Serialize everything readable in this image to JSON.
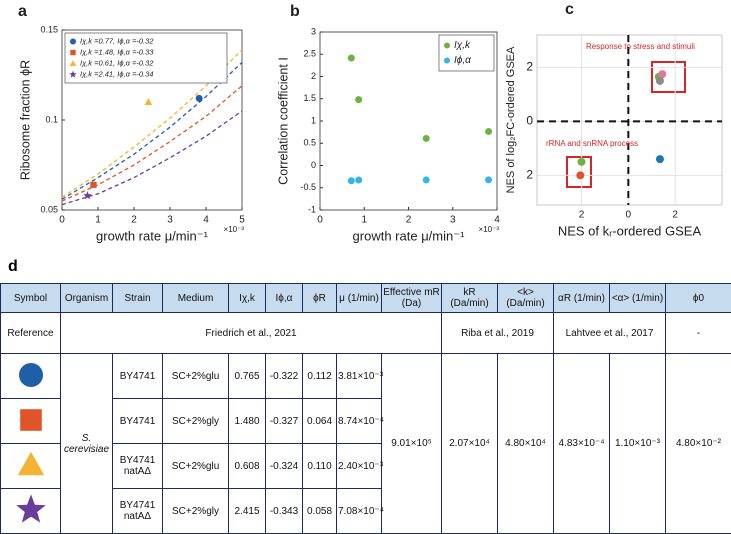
{
  "chart_data": [
    {
      "type": "scatter",
      "label": "a",
      "xlabel": "growth rate μ/min⁻¹",
      "x_multiplier": "×10⁻³",
      "ylabel": "Ribosome fraction ϕR",
      "xlim": [
        0,
        5
      ],
      "ylim": [
        0.05,
        0.15
      ],
      "xticks": [
        0,
        1,
        2,
        3,
        4,
        5
      ],
      "yticks": [
        0.05,
        0.1,
        0.15
      ],
      "legend": "upper left",
      "series": [
        {
          "name": "Iχ,k =0.77, Iϕ,α =-0.32",
          "color": "#1f5fa8",
          "marker": "circle",
          "x": [
            3.81
          ],
          "values": [
            0.112
          ],
          "fit_x": [
            0,
            1,
            2,
            3,
            4,
            5
          ],
          "fit_values": [
            0.056,
            0.068,
            0.081,
            0.096,
            0.113,
            0.132
          ]
        },
        {
          "name": "Iχ,k =1.48, Iϕ,α =-0.33",
          "color": "#e0542a",
          "marker": "square",
          "x": [
            0.874
          ],
          "values": [
            0.064
          ],
          "fit_x": [
            0,
            1,
            2,
            3,
            4,
            5
          ],
          "fit_values": [
            0.055,
            0.064,
            0.075,
            0.088,
            0.102,
            0.119
          ]
        },
        {
          "name": "Iχ,k =0.61, Iϕ,α =-0.32",
          "color": "#f3b531",
          "marker": "triangle",
          "x": [
            2.4
          ],
          "values": [
            0.11
          ],
          "fit_x": [
            0,
            1,
            2,
            3,
            4,
            5
          ],
          "fit_values": [
            0.057,
            0.07,
            0.085,
            0.101,
            0.119,
            0.139
          ]
        },
        {
          "name": "Iχ,k =2.41, Iϕ,α =-0.34",
          "color": "#6a3d9a",
          "marker": "star",
          "x": [
            0.708
          ],
          "values": [
            0.058
          ],
          "fit_x": [
            0,
            1,
            2,
            3,
            4,
            5
          ],
          "fit_values": [
            0.053,
            0.059,
            0.068,
            0.079,
            0.091,
            0.105
          ]
        }
      ]
    },
    {
      "type": "scatter",
      "label": "b",
      "xlabel": "growth rate μ/min⁻¹",
      "x_multiplier": "×10⁻³",
      "ylabel": "Correlation coefficient I",
      "xlim": [
        0,
        4
      ],
      "ylim": [
        -1,
        3
      ],
      "xticks": [
        0,
        1,
        2,
        3,
        4
      ],
      "yticks": [
        -1,
        -0.5,
        0,
        0.5,
        1,
        1.5,
        2,
        2.5,
        3
      ],
      "legend": "upper right",
      "series": [
        {
          "name": "Iχ,k",
          "color": "#6db33f",
          "marker": "circle",
          "x": [
            0.708,
            0.874,
            2.4,
            3.81
          ],
          "values": [
            2.415,
            1.48,
            0.608,
            0.765
          ]
        },
        {
          "name": "Iϕ,α",
          "color": "#34b6e4",
          "marker": "circle",
          "x": [
            0.708,
            0.874,
            2.4,
            3.81
          ],
          "values": [
            -0.343,
            -0.327,
            -0.324,
            -0.322
          ]
        }
      ]
    },
    {
      "type": "scatter",
      "label": "c",
      "xlabel": "NES of kᵣ-ordered GSEA",
      "ylabel": "NES of log₂FC-ordered GSEA",
      "xlim": [
        -3.9,
        4
      ],
      "ylim": [
        -3.1,
        3.2
      ],
      "xticks": [
        {
          "value": -2,
          "label": "2"
        },
        0,
        2
      ],
      "yticks": [
        {
          "value": -2,
          "label": "2"
        },
        0,
        2
      ],
      "grid": true,
      "zero_lines": true,
      "annotation_color": "#d62728",
      "annotations": [
        "Response to stress and stimuli",
        "rRNA and snRNA process"
      ],
      "series": [
        {
          "color": "#6db33f",
          "marker": "circle",
          "x": [
            1.3
          ],
          "values": [
            1.65
          ]
        },
        {
          "color": "#e377a0",
          "marker": "circle",
          "x": [
            1.45
          ],
          "values": [
            1.75
          ]
        },
        {
          "color": "#8c8c8c",
          "marker": "circle",
          "x": [
            1.35
          ],
          "values": [
            1.5
          ]
        },
        {
          "color": "#6db33f",
          "marker": "circle",
          "x": [
            -2.0
          ],
          "values": [
            -1.5
          ]
        },
        {
          "color": "#e0542a",
          "marker": "circle",
          "x": [
            -2.05
          ],
          "values": [
            -2.0
          ]
        },
        {
          "color": "#1f77b4",
          "marker": "circle",
          "x": [
            1.35
          ],
          "values": [
            -1.4
          ]
        }
      ]
    }
  ],
  "table": {
    "label": "d",
    "header": [
      "Symbol",
      "Organism",
      "Strain",
      "Medium",
      "Iχ,k",
      "Iϕ,α",
      "ϕR",
      "μ (1/min)",
      "Effective mR (Da)",
      "kR (Da/min)",
      "<k> (Da/min)",
      "αR (1/min)",
      "<α> (1/min)",
      "ϕ0"
    ],
    "reference": [
      "Reference",
      "Friedrich et al., 2021",
      "Riba et al., 2019",
      "Lahtvee et al., 2017",
      "-"
    ],
    "organism": "S. cerevisiae",
    "rows": [
      [
        "BY4741",
        "SC+2%glu",
        "0.765",
        "-0.322",
        "0.112",
        "3.81×10⁻³"
      ],
      [
        "BY4741",
        "SC+2%gly",
        "1.480",
        "-0.327",
        "0.064",
        "8.74×10⁻⁴"
      ],
      [
        "BY4741 natAΔ",
        "SC+2%glu",
        "0.608",
        "-0.324",
        "0.110",
        "2.40×10⁻³"
      ],
      [
        "BY4741 natAΔ",
        "SC+2%gly",
        "2.415",
        "-0.343",
        "0.058",
        "7.08×10⁻⁴"
      ]
    ],
    "shared": [
      "9.01×10⁵",
      "2.07×10⁴",
      "4.80×10⁴",
      "4.83×10⁻⁴",
      "1.10×10⁻³",
      "4.80×10⁻²"
    ]
  }
}
